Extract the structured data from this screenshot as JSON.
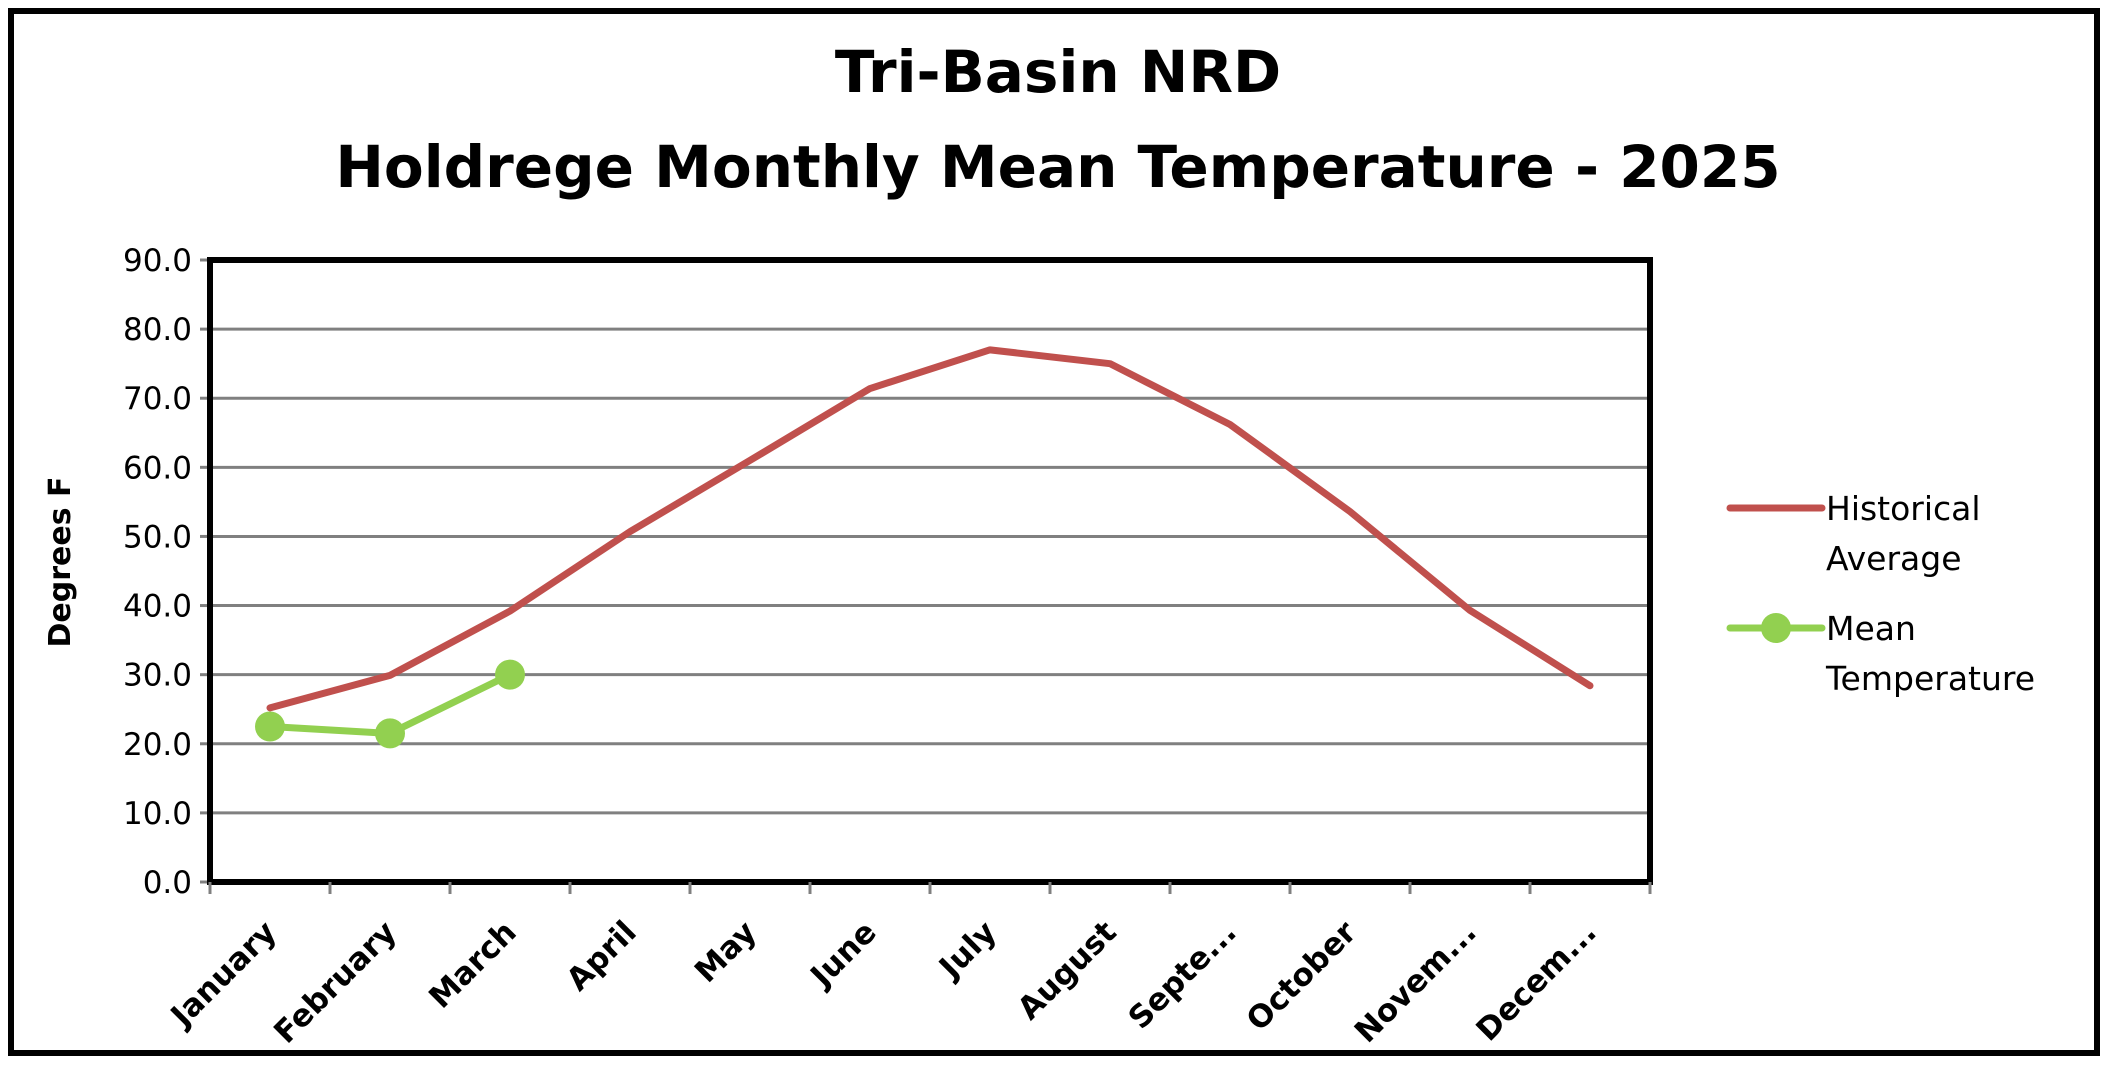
{
  "chart_data": {
    "type": "line",
    "title": "Tri-Basin NRD",
    "subtitle": "Holdrege Monthly Mean Temperature - 2025",
    "ylabel": "Degrees F",
    "xlabel": "",
    "ylim": [
      0,
      90
    ],
    "yticks": [
      "0.0",
      "10.0",
      "20.0",
      "30.0",
      "40.0",
      "50.0",
      "60.0",
      "70.0",
      "80.0",
      "90.0"
    ],
    "categories": [
      "January",
      "February",
      "March",
      "April",
      "May",
      "June",
      "July",
      "August",
      "Septe...",
      "October",
      "Novem...",
      "Decem..."
    ],
    "grid": true,
    "legend_position": "right",
    "series": [
      {
        "name": "Historical Average",
        "name_lines": [
          "Historical",
          "Average"
        ],
        "color": "#c0504d",
        "marker": false,
        "values": [
          25.2,
          29.9,
          39.2,
          50.7,
          61.0,
          71.4,
          77.0,
          75.0,
          66.2,
          53.6,
          39.3,
          28.4
        ]
      },
      {
        "name": "Mean Temperature",
        "name_lines": [
          "Mean",
          "Temperature"
        ],
        "color": "#92d050",
        "marker": true,
        "values": [
          22.5,
          21.5,
          30.0,
          null,
          null,
          null,
          null,
          null,
          null,
          null,
          null,
          null
        ]
      }
    ]
  }
}
